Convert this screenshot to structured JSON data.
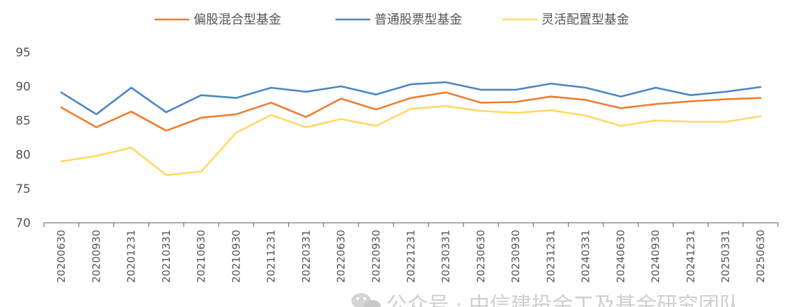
{
  "chart_data": {
    "type": "line",
    "title": "",
    "xlabel": "",
    "ylabel": "",
    "ylim": [
      70,
      95
    ],
    "yticks": [
      70,
      75,
      80,
      85,
      90,
      95
    ],
    "grid": false,
    "legend_position": "top",
    "x": [
      "20200630",
      "20200930",
      "20201231",
      "20210331",
      "20210630",
      "20210930",
      "20211231",
      "20220331",
      "20220630",
      "20220930",
      "20221231",
      "20230331",
      "20230630",
      "20230930",
      "20231231",
      "20240331",
      "20240630",
      "20240930",
      "20241231",
      "20250331",
      "20250630"
    ],
    "series": [
      {
        "name": "偏股混合型基金",
        "color": "#ED7D31",
        "values": [
          86.9,
          84.0,
          86.3,
          83.5,
          85.4,
          85.9,
          87.6,
          85.5,
          88.2,
          86.6,
          88.3,
          89.1,
          87.6,
          87.7,
          88.5,
          88.0,
          86.8,
          87.4,
          87.8,
          88.1,
          88.3
        ]
      },
      {
        "name": "普通股票型基金",
        "color": "#4A86C5",
        "values": [
          89.1,
          85.9,
          89.8,
          86.2,
          88.7,
          88.3,
          89.8,
          89.2,
          90.0,
          88.8,
          90.3,
          90.6,
          89.5,
          89.5,
          90.4,
          89.8,
          88.5,
          89.8,
          88.7,
          89.2,
          89.9
        ]
      },
      {
        "name": "灵活配置型基金",
        "color": "#FFD966",
        "values": [
          79.0,
          79.8,
          81.0,
          77.0,
          77.5,
          83.2,
          85.8,
          84.0,
          85.2,
          84.2,
          86.7,
          87.1,
          86.4,
          86.1,
          86.5,
          85.7,
          84.2,
          85.0,
          84.8,
          84.8,
          85.6
        ]
      }
    ]
  },
  "watermark": "公众号 · 中信建投金工及基金研究团队"
}
